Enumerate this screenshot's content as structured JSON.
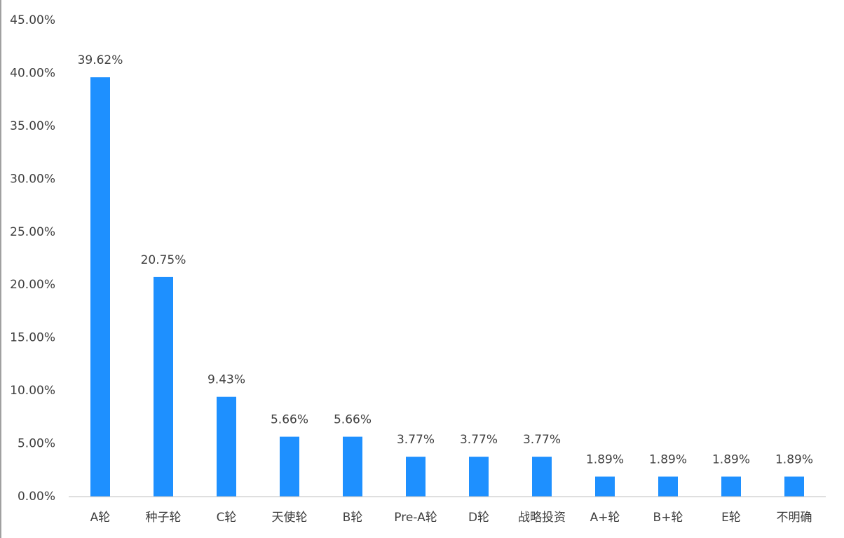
{
  "chart_data": {
    "type": "bar",
    "categories": [
      "A轮",
      "种子轮",
      "C轮",
      "天使轮",
      "B轮",
      "Pre-A轮",
      "D轮",
      "战略投资",
      "A+轮",
      "B+轮",
      "E轮",
      "不明确"
    ],
    "values": [
      39.62,
      20.75,
      9.43,
      5.66,
      5.66,
      3.77,
      3.77,
      3.77,
      1.89,
      1.89,
      1.89,
      1.89
    ],
    "value_labels": [
      "39.62%",
      "20.75%",
      "9.43%",
      "5.66%",
      "5.66%",
      "3.77%",
      "3.77%",
      "3.77%",
      "1.89%",
      "1.89%",
      "1.89%",
      "1.89%"
    ],
    "color": "#1e90ff",
    "ylim": [
      0,
      45
    ],
    "yticks": [
      {
        "value": 0,
        "label": "0.00%"
      },
      {
        "value": 5,
        "label": "5.00%"
      },
      {
        "value": 10,
        "label": "10.00%"
      },
      {
        "value": 15,
        "label": "15.00%"
      },
      {
        "value": 20,
        "label": "20.00%"
      },
      {
        "value": 25,
        "label": "25.00%"
      },
      {
        "value": 30,
        "label": "30.00%"
      },
      {
        "value": 35,
        "label": "35.00%"
      },
      {
        "value": 40,
        "label": "40.00%"
      },
      {
        "value": 45,
        "label": "45.00%"
      }
    ],
    "grid": false
  }
}
